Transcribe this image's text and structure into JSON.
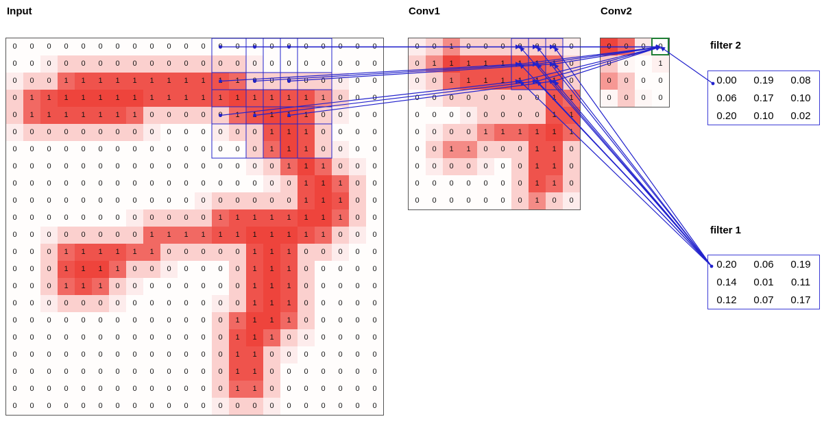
{
  "labels": {
    "input": "Input",
    "conv1": "Conv1",
    "conv2": "Conv2",
    "filter1": "filter 1",
    "filter2": "filter 2"
  },
  "colors": {
    "heat_red": "#ee443c",
    "trace_blue": "#2222cc",
    "selection_green": "#1e7e34"
  },
  "input_grid": {
    "rows": 22,
    "cols": 22,
    "values": [
      "0000000000000000000000",
      "0000000000000000000000",
      "0001111111111100000000",
      "0111111111111111111000",
      "0111111100000111110000",
      "0000000000000001110000",
      "0000000000000001110000",
      "0000000000000000111000",
      "0000000000000000011100",
      "0000000000000000011100",
      "0000000000001111111100",
      "0000000011111111111000",
      "0001111110000011100000",
      "0001111000000011100000",
      "0001110000000011100000",
      "0000000000000011100000",
      "0000000000000111100000",
      "0000000000000111000000",
      "0000000000000110000000",
      "0000000000000110000000",
      "0000000000000110000000",
      "0000000000000000000000"
    ]
  },
  "conv1_grid": {
    "rows": 10,
    "cols": 10,
    "values": [
      "0010000000",
      "0111111110",
      "0011111110",
      "0000000011",
      "0000000011",
      "0000111111",
      "0011000110",
      "0000000110",
      "0000000110",
      "0000000100"
    ]
  },
  "conv2_grid": {
    "rows": 4,
    "cols": 4,
    "values": [
      "0000",
      "0001",
      "0000",
      "0000"
    ],
    "shades": [
      [
        1,
        0.8,
        0.12,
        0
      ],
      [
        0.3,
        0.05,
        0,
        0.08
      ],
      [
        0.55,
        0.3,
        0,
        0
      ],
      [
        0.05,
        0.28,
        0.05,
        0
      ]
    ]
  },
  "filter1": {
    "values": [
      [
        "0.20",
        "0.06",
        "0.19"
      ],
      [
        "0.14",
        "0.01",
        "0.11"
      ],
      [
        "0.12",
        "0.07",
        "0.17"
      ]
    ]
  },
  "filter2": {
    "values": [
      [
        "0.00",
        "0.19",
        "0.08"
      ],
      [
        "0.06",
        "0.17",
        "0.10"
      ],
      [
        "0.20",
        "0.10",
        "0.02"
      ]
    ]
  }
}
